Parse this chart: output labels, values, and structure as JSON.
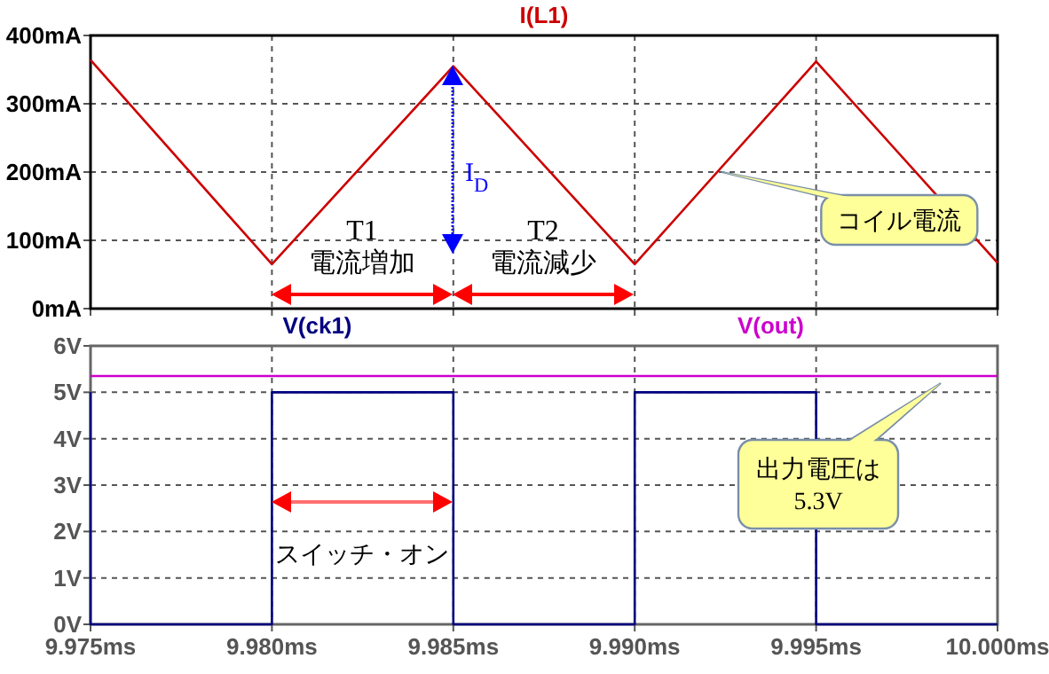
{
  "chart_data": [
    {
      "type": "line",
      "xlim": [
        9.975,
        10.0
      ],
      "xticks": [
        {
          "value": 9.975,
          "label": null
        },
        {
          "value": 9.98,
          "label": null
        },
        {
          "value": 9.985,
          "label": null
        },
        {
          "value": 9.99,
          "label": null
        },
        {
          "value": 9.995,
          "label": null
        },
        {
          "value": 10.0,
          "label": null
        }
      ],
      "ylim": [
        0,
        400
      ],
      "yticks": [
        {
          "value": 0,
          "label": "0mA"
        },
        {
          "value": 100,
          "label": "100mA"
        },
        {
          "value": 200,
          "label": "200mA"
        },
        {
          "value": 300,
          "label": "300mA"
        },
        {
          "value": 400,
          "label": "400mA"
        }
      ],
      "tick_labels": "y",
      "grid": true,
      "legend": "top",
      "series": [
        {
          "name": "I(L1)",
          "color": "#cc0000",
          "x": [
            9.975,
            9.98,
            9.985,
            9.99,
            9.995,
            10.0
          ],
          "values": [
            364,
            65,
            355,
            65,
            362,
            67
          ]
        }
      ],
      "annotations": [
        "T1",
        "電流増加",
        "T2",
        "電流減少",
        "I$_{D}$",
        {
          "text": "コイル電流",
          "x": 9.9924,
          "y": 200
        }
      ]
    },
    {
      "type": "line",
      "xlim": [
        9.975,
        10.0
      ],
      "xticks": [
        {
          "value": 9.975,
          "label": "9.975ms"
        },
        {
          "value": 9.98,
          "label": "9.980ms"
        },
        {
          "value": 9.985,
          "label": "9.985ms"
        },
        {
          "value": 9.99,
          "label": "9.990ms"
        },
        {
          "value": 9.995,
          "label": "9.995ms"
        },
        {
          "value": 10.0,
          "label": "10.000ms"
        }
      ],
      "ylim": [
        0,
        6
      ],
      "yticks": [
        {
          "value": 0,
          "label": "0V"
        },
        {
          "value": 1,
          "label": "1V"
        },
        {
          "value": 2,
          "label": "2V"
        },
        {
          "value": 3,
          "label": "3V"
        },
        {
          "value": 4,
          "label": "4V"
        },
        {
          "value": 5,
          "label": "5V"
        },
        {
          "value": 6,
          "label": "6V"
        }
      ],
      "grid": true,
      "legend": "top",
      "series": [
        {
          "name": "V(ck1)",
          "color": "#000080",
          "x": [
            9.975,
            9.975,
            9.98,
            9.98,
            9.985,
            9.985,
            9.99,
            9.99,
            9.995,
            9.995,
            10.0
          ],
          "values": [
            5,
            0,
            0,
            5,
            5,
            0,
            0,
            5,
            5,
            0,
            0
          ]
        },
        {
          "name": "V(out)",
          "color": "#cc00cc",
          "x": [
            9.975,
            10.0
          ],
          "values": [
            5.35,
            5.35
          ]
        }
      ],
      "annotations": [
        "スイッチ・オン",
        "出力電圧は 5.3V"
      ]
    }
  ]
}
